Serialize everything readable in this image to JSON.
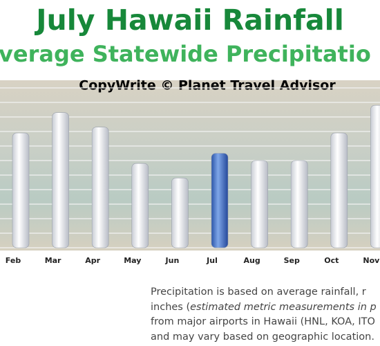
{
  "chart_data": {
    "type": "bar",
    "title": "July Hawaii Rainfall",
    "subtitle": "verage Statewide Precipitatio",
    "annotation": "CopyWrite © Planet Travel Advisor",
    "categories": [
      "Feb",
      "Mar",
      "Apr",
      "May",
      "Jun",
      "Jul",
      "Aug",
      "Sep",
      "Oct",
      "Nov"
    ],
    "values": [
      7.9,
      9.3,
      8.3,
      5.8,
      4.8,
      6.5,
      6.0,
      6.0,
      7.9,
      9.8
    ],
    "colors": [
      "#ffffff",
      "#ffffff",
      "#ffffff",
      "#ffffff",
      "#ffffff",
      "#3d6fc8",
      "#ffffff",
      "#ffffff",
      "#ffffff",
      "#ffffff"
    ],
    "ylim": [
      0,
      11
    ],
    "yticks": [
      0,
      1,
      2,
      3,
      4,
      5,
      6,
      7,
      8,
      9,
      10,
      11
    ],
    "grid": true
  },
  "note": {
    "lines": [
      [
        {
          "text": "Precipitation is based on average rainfall, r"
        }
      ],
      [
        {
          "text": "inches ("
        },
        {
          "text": "estimated metric measurements in p",
          "italic": true
        }
      ],
      [
        {
          "text": "from major airports in Hawaii (HNL, KOA, ITO"
        }
      ],
      [
        {
          "text": "and may vary based on geographic location."
        }
      ]
    ]
  }
}
